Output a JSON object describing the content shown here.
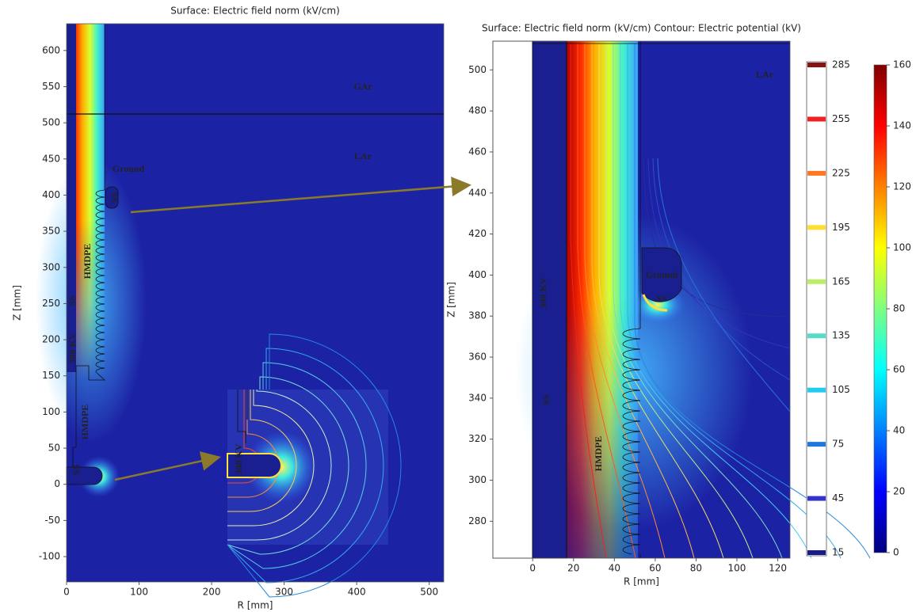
{
  "chart_data": [
    {
      "type": "surface",
      "title": "Surface: Electric field norm (kV/cm)",
      "xlabel": "R [mm]",
      "ylabel": "Z [mm]",
      "xlim": [
        0,
        520
      ],
      "ylim": [
        -135,
        637
      ],
      "xticks": [
        0,
        100,
        200,
        300,
        400,
        500
      ],
      "yticks": [
        -100,
        -50,
        0,
        50,
        100,
        150,
        200,
        250,
        300,
        350,
        400,
        450,
        500,
        550,
        600
      ],
      "annotations": [
        "GAr",
        "LAr",
        "Ground",
        "SS",
        "HMDPE",
        "SS",
        "300 KV",
        "HMDPE",
        "SS",
        "300 KV"
      ]
    },
    {
      "type": "surface",
      "title": "Surface: Electric field norm (kV/cm)  Contour: Electric potential (kV)",
      "xlabel": "R [mm]",
      "ylabel": "Z [mm]",
      "xlim": [
        -19.5,
        126
      ],
      "ylim": [
        262,
        514
      ],
      "xticks": [
        0,
        20,
        40,
        60,
        80,
        100,
        120
      ],
      "yticks": [
        280,
        300,
        320,
        340,
        360,
        380,
        400,
        420,
        440,
        460,
        480,
        500
      ],
      "annotations": [
        "LAr",
        "Ground",
        "SS",
        "300 KV",
        "SS",
        "HMDPE"
      ],
      "contour_legend": {
        "ylim": [
          15,
          285
        ],
        "levels": [
          15,
          45,
          75,
          105,
          135,
          165,
          195,
          225,
          255,
          285
        ],
        "colors": [
          "#1a1a8a",
          "#3333cc",
          "#2277dd",
          "#22ccee",
          "#55ddcc",
          "#bbee66",
          "#ffdd33",
          "#ff7722",
          "#ee2222",
          "#881111"
        ]
      },
      "colorbar": {
        "ylim": [
          0,
          160
        ],
        "yticks": [
          0,
          20,
          40,
          60,
          80,
          100,
          120,
          140,
          160
        ],
        "colormap": "jet"
      }
    }
  ]
}
